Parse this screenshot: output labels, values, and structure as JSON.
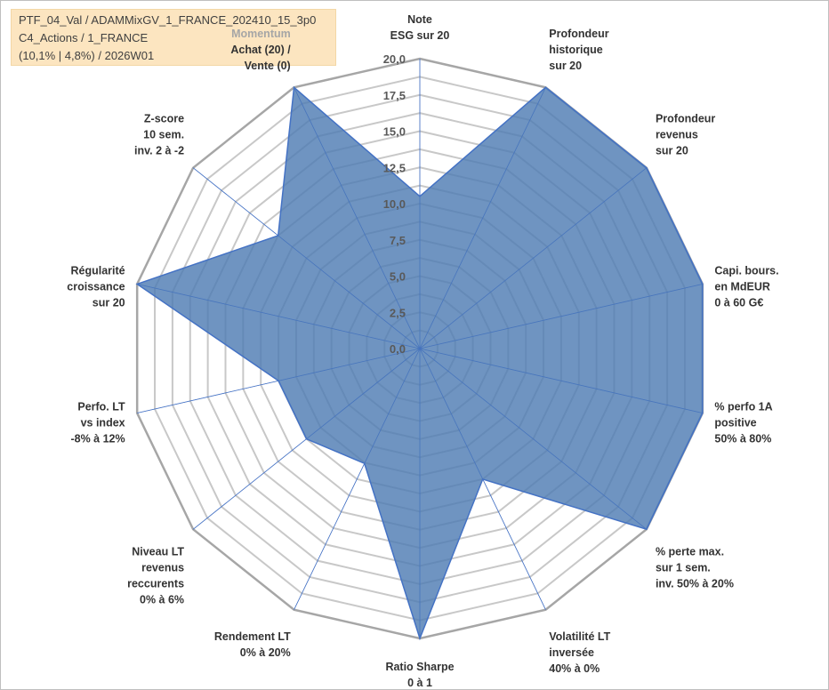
{
  "header": {
    "line1": "PTF_04_Val / ADAMMixGV_1_FRANCE_202410_15_3p0",
    "line2": "C4_Actions / 1_FRANCE",
    "line3": "(10,1% | 4,8%) / 2026W01",
    "box_color": "#fce5c0"
  },
  "chart_data": {
    "type": "radar",
    "axis_range": [
      0,
      20
    ],
    "tick_labels": [
      "0,0",
      "2,5",
      "5,0",
      "7,5",
      "10,0",
      "12,5",
      "15,0",
      "17,5",
      "20,0"
    ],
    "axes": [
      {
        "label": [
          "Note",
          "ESG sur 20"
        ],
        "value": 10.5
      },
      {
        "label": [
          "Profondeur",
          "historique",
          "sur 20"
        ],
        "value": 20
      },
      {
        "label": [
          "Profondeur",
          "revenus",
          "sur 20"
        ],
        "value": 20
      },
      {
        "label": [
          "Capi. bours.",
          "en MdEUR",
          "0 à 60 G€"
        ],
        "value": 20
      },
      {
        "label": [
          "% perfo 1A",
          "positive",
          "50% à 80%"
        ],
        "value": 20
      },
      {
        "label": [
          "% perte max.",
          "sur 1 sem.",
          "inv. 50% à 20%"
        ],
        "value": 20
      },
      {
        "label": [
          "Volatilité LT",
          "inversée",
          "40% à 0%"
        ],
        "value": 10
      },
      {
        "label": [
          "Ratio Sharpe",
          "0 à 1"
        ],
        "value": 20
      },
      {
        "label": [
          "Rendement LT",
          "0% à 20%"
        ],
        "value": 8.8
      },
      {
        "label": [
          "Niveau LT",
          "revenus",
          "reccurents",
          "0% à 6%"
        ],
        "value": 10
      },
      {
        "label": [
          "Perfo. LT",
          "vs index",
          "-8% à 12%"
        ],
        "value": 10
      },
      {
        "label": [
          "Régularité",
          "croissance",
          "sur 20"
        ],
        "value": 20
      },
      {
        "label": [
          "Z-score",
          "10 sem.",
          "inv. 2 à -2"
        ],
        "value": 12.5
      },
      {
        "label": [
          "Momentum",
          "Achat (20) /",
          "Vente (0)"
        ],
        "value": 20
      }
    ],
    "grid": true,
    "colors": {
      "fill": "#4f7db3",
      "stroke": "#4472c4",
      "grid": "#c8c8c8",
      "outer_ring": "#a6a6a6",
      "spoke": "#4472c4",
      "momentum_title": "#a6a6a6"
    }
  }
}
